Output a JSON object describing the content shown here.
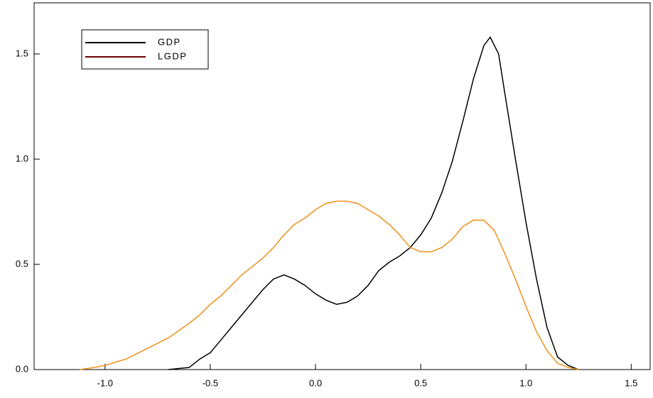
{
  "chart_data": {
    "type": "line",
    "series": [
      {
        "name": "GDP",
        "color": "#000000",
        "legend_color": "#000000",
        "x": [
          -0.7,
          -0.6,
          -0.55,
          -0.5,
          -0.45,
          -0.4,
          -0.35,
          -0.3,
          -0.25,
          -0.2,
          -0.15,
          -0.1,
          -0.05,
          0.0,
          0.05,
          0.1,
          0.15,
          0.2,
          0.25,
          0.3,
          0.35,
          0.4,
          0.45,
          0.5,
          0.55,
          0.6,
          0.65,
          0.7,
          0.75,
          0.8,
          0.83,
          0.87,
          0.9,
          0.95,
          1.0,
          1.05,
          1.1,
          1.15,
          1.2,
          1.25
        ],
        "values": [
          0.0,
          0.01,
          0.05,
          0.08,
          0.14,
          0.2,
          0.26,
          0.32,
          0.38,
          0.43,
          0.45,
          0.43,
          0.4,
          0.36,
          0.33,
          0.31,
          0.32,
          0.35,
          0.4,
          0.47,
          0.51,
          0.54,
          0.58,
          0.64,
          0.72,
          0.84,
          0.99,
          1.18,
          1.38,
          1.54,
          1.58,
          1.5,
          1.31,
          1.0,
          0.7,
          0.43,
          0.2,
          0.06,
          0.02,
          0.0
        ]
      },
      {
        "name": "LGDP",
        "color": "#f0901c",
        "legend_color": "#6b0000",
        "x": [
          -1.12,
          -1.05,
          -1.0,
          -0.9,
          -0.8,
          -0.7,
          -0.6,
          -0.55,
          -0.5,
          -0.45,
          -0.4,
          -0.35,
          -0.3,
          -0.25,
          -0.2,
          -0.15,
          -0.1,
          -0.05,
          0.0,
          0.05,
          0.1,
          0.15,
          0.2,
          0.25,
          0.3,
          0.35,
          0.4,
          0.45,
          0.5,
          0.55,
          0.6,
          0.65,
          0.7,
          0.75,
          0.8,
          0.85,
          0.9,
          0.95,
          1.0,
          1.05,
          1.1,
          1.15,
          1.2,
          1.25
        ],
        "values": [
          0.0,
          0.01,
          0.02,
          0.05,
          0.1,
          0.15,
          0.22,
          0.26,
          0.31,
          0.35,
          0.4,
          0.45,
          0.49,
          0.53,
          0.58,
          0.64,
          0.69,
          0.72,
          0.76,
          0.79,
          0.8,
          0.8,
          0.79,
          0.76,
          0.73,
          0.69,
          0.64,
          0.58,
          0.56,
          0.56,
          0.58,
          0.62,
          0.68,
          0.71,
          0.71,
          0.66,
          0.55,
          0.43,
          0.3,
          0.18,
          0.09,
          0.03,
          0.01,
          0.0
        ]
      }
    ],
    "xlim": [
      -1.337,
      1.59
    ],
    "ylim": [
      0,
      1.743
    ],
    "xticks": [
      {
        "value": -1,
        "label": "-1.0"
      },
      -0.5,
      {
        "value": 0,
        "label": "0.0"
      },
      0.5,
      {
        "value": 1,
        "label": "1.0"
      },
      1.5
    ],
    "yticks": [
      {
        "value": 0,
        "label": "0.0"
      },
      0.5,
      {
        "value": 1,
        "label": "1.0"
      },
      1.5
    ],
    "legend": "upper left"
  }
}
